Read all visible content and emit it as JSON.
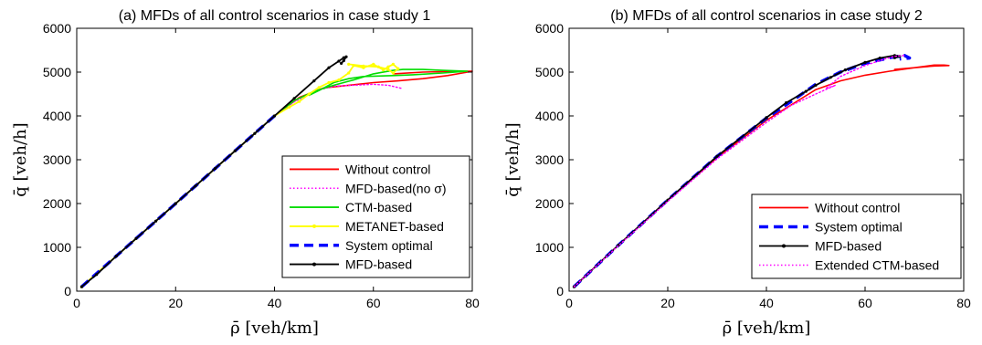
{
  "chart_data": [
    {
      "type": "line",
      "title": "(a) MFDs of all control scenarios in case study 1",
      "xlabel": "ρ̄ [veh/km]",
      "ylabel": "q̄ [veh/h]",
      "xlim": [
        0,
        80
      ],
      "ylim": [
        0,
        6000
      ],
      "xticks": [
        "0",
        "20",
        "40",
        "60",
        "80"
      ],
      "yticks": [
        "0",
        "1000",
        "2000",
        "3000",
        "4000",
        "5000",
        "6000"
      ],
      "grid": false,
      "legend_position": "lower-right",
      "series": [
        {
          "name": "Without control",
          "color": "#ff0000",
          "dash": "solid",
          "marker": false,
          "points": [
            [
              1,
              100
            ],
            [
              10,
              1000
            ],
            [
              20,
              2000
            ],
            [
              30,
              3000
            ],
            [
              40,
              4000
            ],
            [
              45,
              4420
            ],
            [
              50,
              4640
            ],
            [
              55,
              4700
            ],
            [
              60,
              4760
            ],
            [
              65,
              4800
            ],
            [
              70,
              4850
            ],
            [
              75,
              4920
            ],
            [
              78,
              4980
            ],
            [
              80,
              5020
            ],
            [
              78,
              5020
            ],
            [
              70,
              5000
            ],
            [
              64,
              4960
            ]
          ]
        },
        {
          "name": "MFD-based(no σ)",
          "color": "#ff00ff",
          "dash": "dotted",
          "marker": false,
          "points": [
            [
              1,
              100
            ],
            [
              20,
              2000
            ],
            [
              40,
              4000
            ],
            [
              44,
              4320
            ],
            [
              48,
              4560
            ],
            [
              52,
              4680
            ],
            [
              56,
              4700
            ],
            [
              60,
              4720
            ],
            [
              63,
              4700
            ],
            [
              66,
              4620
            ]
          ]
        },
        {
          "name": "CTM-based",
          "color": "#00dd00",
          "dash": "solid",
          "marker": false,
          "points": [
            [
              1,
              100
            ],
            [
              20,
              2000
            ],
            [
              40,
              4000
            ],
            [
              44,
              4350
            ],
            [
              48,
              4560
            ],
            [
              52,
              4700
            ],
            [
              56,
              4820
            ],
            [
              60,
              4960
            ],
            [
              64,
              5040
            ],
            [
              66,
              5060
            ],
            [
              70,
              5060
            ],
            [
              74,
              5040
            ],
            [
              79,
              5020
            ],
            [
              74,
              4980
            ],
            [
              68,
              4940
            ],
            [
              64,
              4920
            ],
            [
              58,
              4900
            ],
            [
              55,
              4850
            ],
            [
              52,
              4760
            ],
            [
              49,
              4580
            ],
            [
              47,
              4470
            ]
          ]
        },
        {
          "name": "METANET-based",
          "color": "#ffff00",
          "dash": "solid",
          "marker": true,
          "points": [
            [
              1,
              100
            ],
            [
              20,
              2000
            ],
            [
              40,
              4000
            ],
            [
              43,
              4200
            ],
            [
              45,
              4330
            ],
            [
              47,
              4500
            ],
            [
              49,
              4650
            ],
            [
              51,
              4760
            ],
            [
              53,
              4820
            ],
            [
              55,
              4980
            ],
            [
              56,
              5150
            ],
            [
              58,
              5100
            ],
            [
              60,
              5180
            ],
            [
              62,
              5050
            ],
            [
              63,
              5120
            ],
            [
              64,
              5180
            ],
            [
              65,
              5080
            ],
            [
              64,
              4980
            ],
            [
              63,
              5060
            ],
            [
              61,
              5120
            ],
            [
              58,
              5140
            ],
            [
              55,
              5180
            ]
          ]
        },
        {
          "name": "System optimal",
          "color": "#0000ff",
          "dash": "dashed",
          "marker": false,
          "points": [
            [
              1,
              100
            ],
            [
              10,
              1000
            ],
            [
              20,
              2000
            ],
            [
              30,
              3000
            ],
            [
              40,
              4000
            ]
          ]
        },
        {
          "name": "MFD-based",
          "color": "#000000",
          "dash": "solid",
          "marker": true,
          "points": [
            [
              1,
              100
            ],
            [
              4,
              380
            ],
            [
              8,
              800
            ],
            [
              12,
              1200
            ],
            [
              16,
              1600
            ],
            [
              20,
              2000
            ],
            [
              24,
              2400
            ],
            [
              28,
              2800
            ],
            [
              32,
              3200
            ],
            [
              36,
              3600
            ],
            [
              40,
              4000
            ],
            [
              44,
              4400
            ],
            [
              48,
              4800
            ],
            [
              51,
              5100
            ],
            [
              53,
              5250
            ],
            [
              54,
              5330
            ],
            [
              54.5,
              5350
            ],
            [
              54,
              5260
            ],
            [
              53.5,
              5200
            ]
          ]
        }
      ]
    },
    {
      "type": "line",
      "title": "(b) MFDs of all control scenarios in case study 2",
      "xlabel": "ρ̄ [veh/km]",
      "ylabel": "q̄ [veh/h]",
      "xlim": [
        0,
        80
      ],
      "ylim": [
        0,
        6000
      ],
      "xticks": [
        "0",
        "20",
        "40",
        "60",
        "80"
      ],
      "yticks": [
        "0",
        "1000",
        "2000",
        "3000",
        "4000",
        "5000",
        "6000"
      ],
      "grid": false,
      "legend_position": "lower-right",
      "series": [
        {
          "name": "Without control",
          "color": "#ff0000",
          "dash": "solid",
          "marker": false,
          "points": [
            [
              1,
              100
            ],
            [
              10,
              1050
            ],
            [
              20,
              2080
            ],
            [
              30,
              3050
            ],
            [
              40,
              3900
            ],
            [
              45,
              4250
            ],
            [
              50,
              4600
            ],
            [
              55,
              4800
            ],
            [
              60,
              4930
            ],
            [
              65,
              5020
            ],
            [
              70,
              5100
            ],
            [
              74,
              5160
            ],
            [
              76,
              5160
            ],
            [
              77,
              5150
            ],
            [
              74,
              5140
            ],
            [
              70,
              5100
            ],
            [
              66,
              5060
            ]
          ]
        },
        {
          "name": "System optimal",
          "color": "#0000ff",
          "dash": "dashed",
          "marker": false,
          "points": [
            [
              1,
              100
            ],
            [
              10,
              1050
            ],
            [
              20,
              2080
            ],
            [
              30,
              3080
            ],
            [
              40,
              3950
            ],
            [
              45,
              4330
            ],
            [
              50,
              4720
            ],
            [
              55,
              5000
            ],
            [
              60,
              5200
            ],
            [
              65,
              5330
            ],
            [
              68,
              5380
            ],
            [
              69,
              5320
            ],
            [
              67,
              5300
            ]
          ]
        },
        {
          "name": "MFD-based",
          "color": "#000000",
          "dash": "solid",
          "marker": true,
          "points": [
            [
              1,
              100
            ],
            [
              10,
              1050
            ],
            [
              20,
              2080
            ],
            [
              30,
              3080
            ],
            [
              40,
              3960
            ],
            [
              44,
              4300
            ],
            [
              48,
              4560
            ],
            [
              50,
              4700
            ],
            [
              53,
              4880
            ],
            [
              56,
              5050
            ],
            [
              60,
              5220
            ],
            [
              63,
              5320
            ],
            [
              66,
              5380
            ],
            [
              67,
              5360
            ],
            [
              66,
              5330
            ]
          ]
        },
        {
          "name": "Extended CTM-based",
          "color": "#ff00ff",
          "dash": "dotted",
          "marker": false,
          "points": [
            [
              1,
              100
            ],
            [
              10,
              1040
            ],
            [
              20,
              2050
            ],
            [
              30,
              3020
            ],
            [
              40,
              3850
            ],
            [
              45,
              4240
            ],
            [
              50,
              4500
            ],
            [
              54,
              4700
            ],
            [
              52,
              4620
            ],
            [
              55,
              4900
            ],
            [
              60,
              5150
            ],
            [
              64,
              5300
            ],
            [
              66,
              5360
            ],
            [
              68,
              5380
            ]
          ]
        }
      ]
    }
  ]
}
